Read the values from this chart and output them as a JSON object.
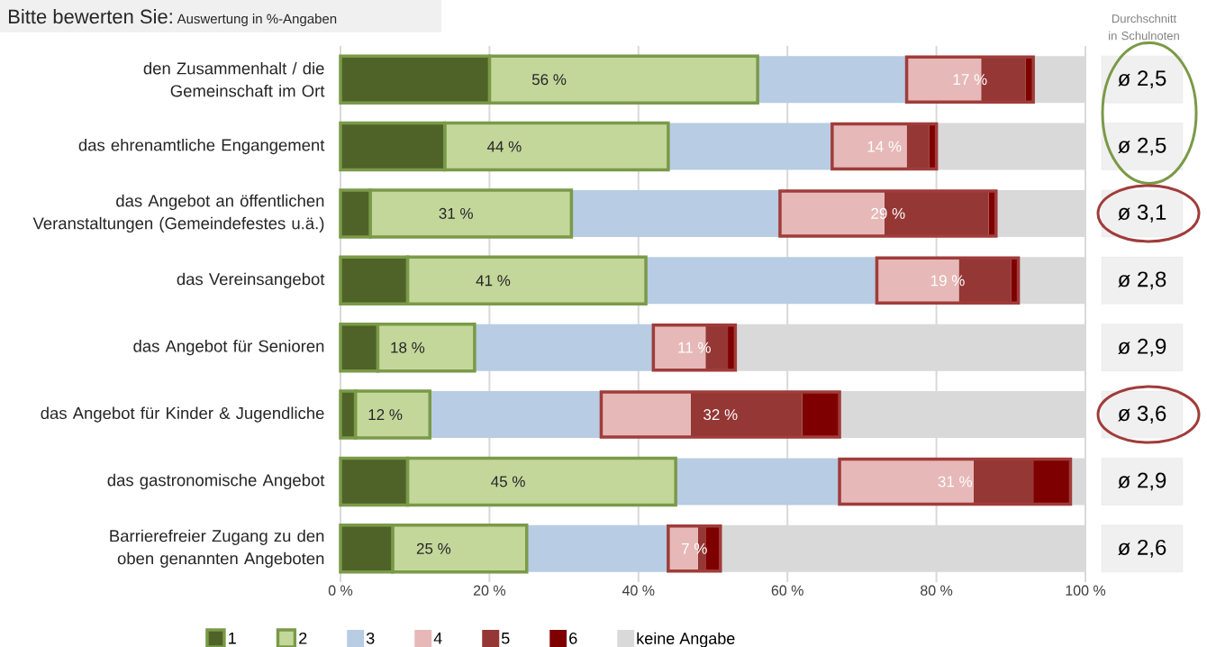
{
  "chart_data": {
    "type": "bar",
    "orientation": "horizontal",
    "stacked": true,
    "title": "Bitte bewerten Sie:",
    "subtitle": "Auswertung in %-Angaben",
    "categories": [
      "den Zusammenhalt / die Gemeinschaft im Ort",
      "das ehrenamtliche Engangement",
      "das Angebot an öffentlichen Veranstaltungen (Gemeindefestes u.ä.)",
      "das Vereinsangebot",
      "das Angebot für Senioren",
      "das Angebot für Kinder & Jugendliche",
      "das gastronomische Angebot",
      "Barrierefreier Zugang zu den oben genannten Angeboten"
    ],
    "series": [
      {
        "name": "1",
        "color": "#4f6228",
        "values": [
          20,
          14,
          4,
          9,
          5,
          2,
          9,
          7
        ]
      },
      {
        "name": "2",
        "color": "#c4d79b",
        "values": [
          36,
          30,
          27,
          32,
          13,
          10,
          36,
          18
        ]
      },
      {
        "name": "3",
        "color": "#b8cce4",
        "values": [
          20,
          22,
          28,
          31,
          24,
          23,
          22,
          19
        ]
      },
      {
        "name": "4",
        "color": "#e6b9b8",
        "values": [
          10,
          10,
          14,
          11,
          7,
          12,
          18,
          4
        ]
      },
      {
        "name": "5",
        "color": "#953735",
        "values": [
          6,
          3,
          14,
          7,
          3,
          15,
          8,
          1
        ]
      },
      {
        "name": "6",
        "color": "#7f0000",
        "values": [
          1,
          1,
          1,
          1,
          1,
          5,
          5,
          2
        ]
      },
      {
        "name": "keine Angabe",
        "color": "#d9d9d9",
        "values": [
          7,
          20,
          12,
          9,
          47,
          33,
          2,
          49
        ]
      }
    ],
    "xlim": [
      0,
      100
    ],
    "xticks": [
      {
        "value": 0,
        "label": "0 %"
      },
      {
        "value": 20,
        "label": "20 %"
      },
      {
        "value": 40,
        "label": "40 %"
      },
      {
        "value": 60,
        "label": "60 %"
      },
      {
        "value": 80,
        "label": "80 %"
      },
      {
        "value": 100,
        "label": "100 %"
      }
    ],
    "grid": "x",
    "legend": "bottom",
    "annotations": [
      "56 %",
      "44 %",
      "31 %",
      "41 %",
      "18 %",
      "12 %",
      "45 %",
      "25 %",
      "17 %",
      "14 %",
      "29 %",
      "19 %",
      "11 %",
      "32 %",
      "31 %",
      "7 %",
      "Durchschnitt in Schulnoten",
      "ø 2,5",
      "ø 2,5",
      "ø 3,1",
      "ø 2,8",
      "ø 2,9",
      "ø 3,6",
      "ø 2,9",
      "ø 2,6"
    ]
  }
}
